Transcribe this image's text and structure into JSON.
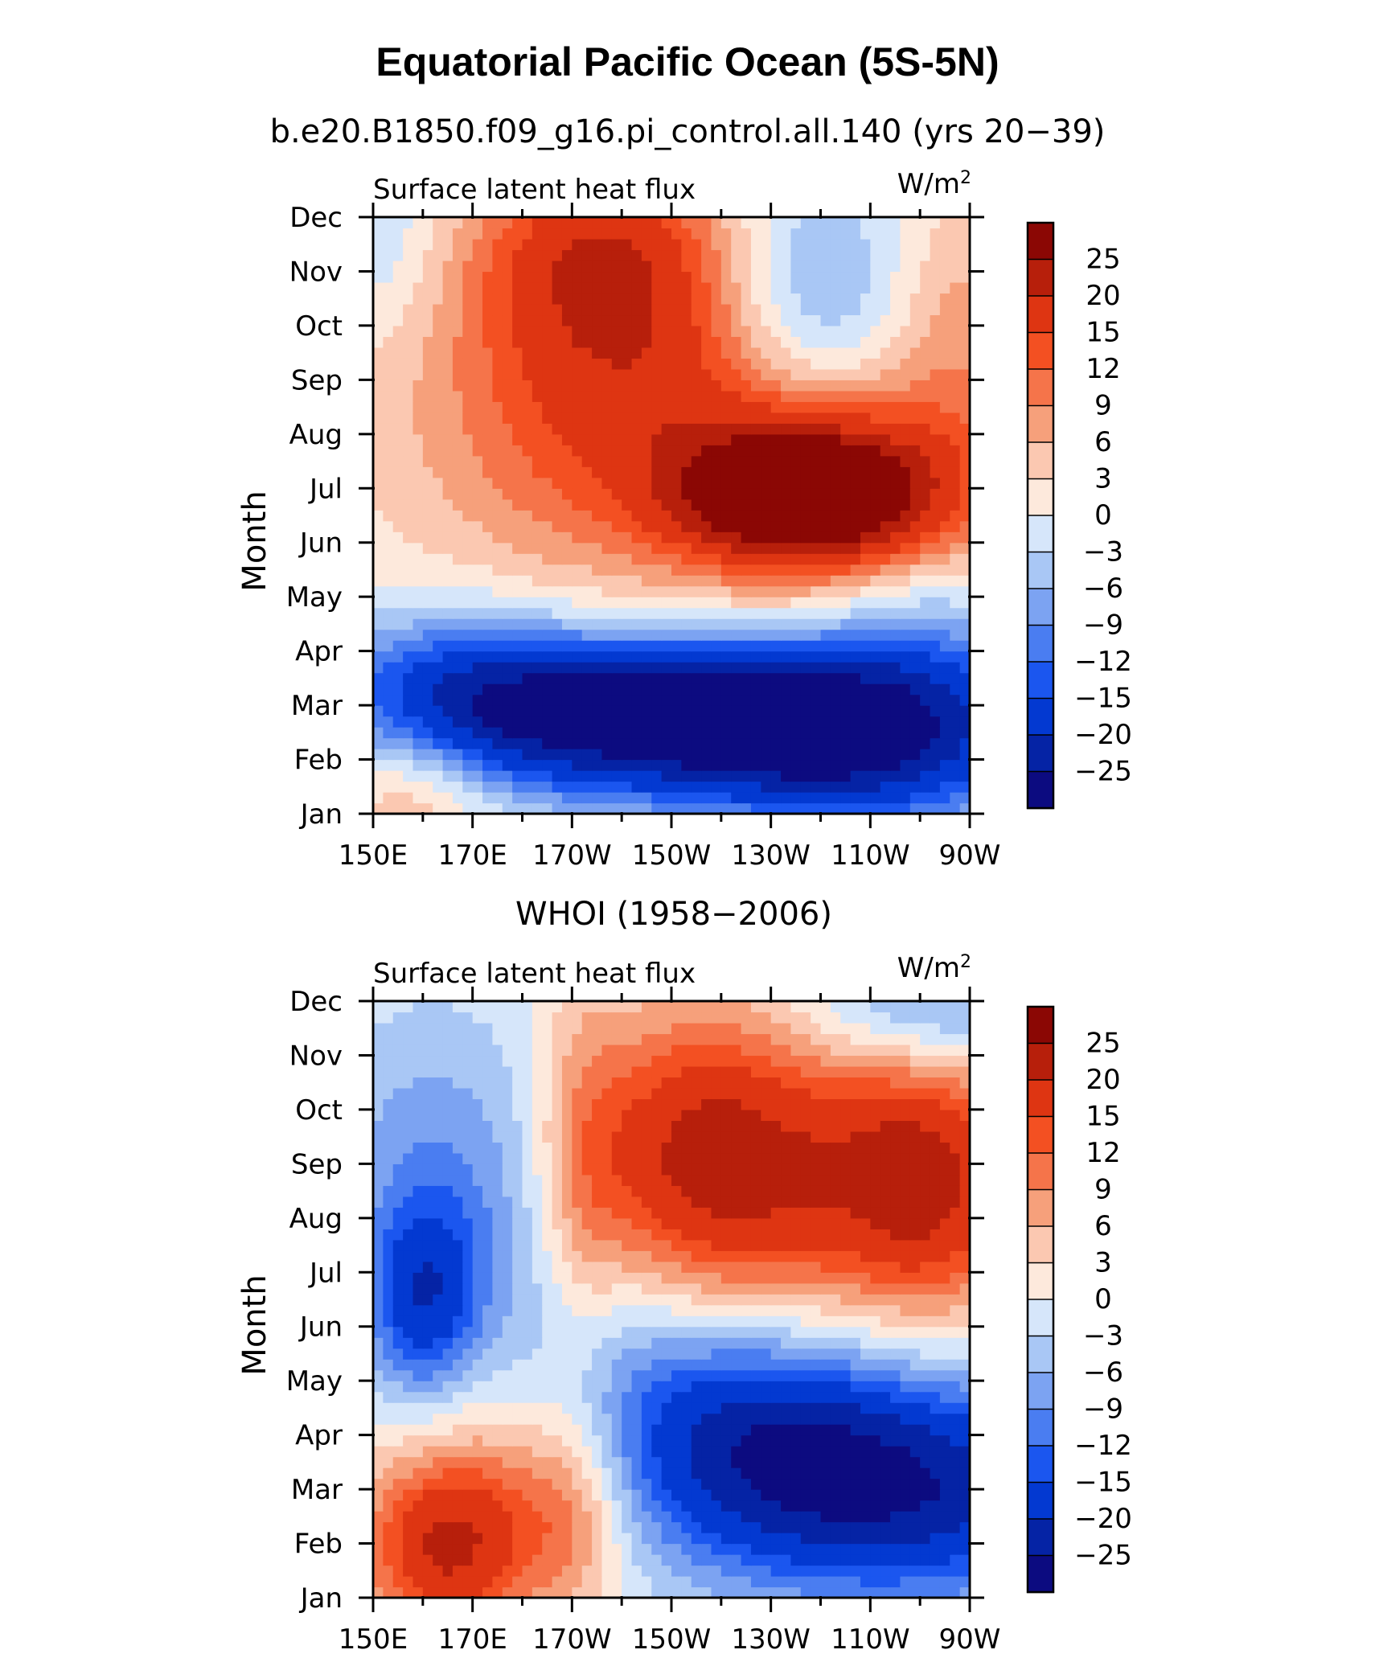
{
  "chart_data": {
    "type": "heatmap",
    "title": "Equatorial Pacific Ocean (5S-5N)",
    "colors": [
      "#0c0b80",
      "#0523a5",
      "#0339d1",
      "#1b56ef",
      "#4a7df1",
      "#7ca3f2",
      "#a9c7f5",
      "#d6e6fa",
      "#fde9dc",
      "#fbc8b1",
      "#f6a07b",
      "#f5744a",
      "#f35022",
      "#de3512",
      "#b71f0b",
      "#8b0704"
    ],
    "colorbar_levels": [
      "25",
      "20",
      "15",
      "12",
      "9",
      "6",
      "3",
      "0",
      "−3",
      "−6",
      "−9",
      "−12",
      "−15",
      "−20",
      "−25"
    ],
    "level_values": [
      -25,
      -20,
      -15,
      -12,
      -9,
      -6,
      -3,
      0,
      3,
      6,
      9,
      12,
      15,
      20,
      25
    ],
    "panels": [
      {
        "subtitle": "b.e20.B1850.f09_g16.pi_control.all.140 (yrs 20−39)",
        "left_label": "Surface latent heat flux",
        "units_base": "W/m",
        "units_sup": "2",
        "ylabel": "Month",
        "yticks": [
          "Jan",
          "Feb",
          "Mar",
          "Apr",
          "May",
          "Jun",
          "Jul",
          "Aug",
          "Sep",
          "Oct",
          "Nov",
          "Dec"
        ],
        "xticks": [
          "150E",
          "170E",
          "170W",
          "150W",
          "130W",
          "110W",
          "90W"
        ],
        "x_range": [
          150,
          270
        ],
        "y_range": [
          1,
          12
        ],
        "field": "model"
      },
      {
        "subtitle": "WHOI (1958−2006)",
        "left_label": "Surface latent heat flux",
        "units_base": "W/m",
        "units_sup": "2",
        "ylabel": "Month",
        "yticks": [
          "Jan",
          "Feb",
          "Mar",
          "Apr",
          "May",
          "Jun",
          "Jul",
          "Aug",
          "Sep",
          "Oct",
          "Nov",
          "Dec"
        ],
        "xticks": [
          "150E",
          "170E",
          "170W",
          "150W",
          "130W",
          "110W",
          "90W"
        ],
        "x_range": [
          150,
          270
        ],
        "y_range": [
          1,
          12
        ],
        "field": "obs"
      }
    ]
  }
}
